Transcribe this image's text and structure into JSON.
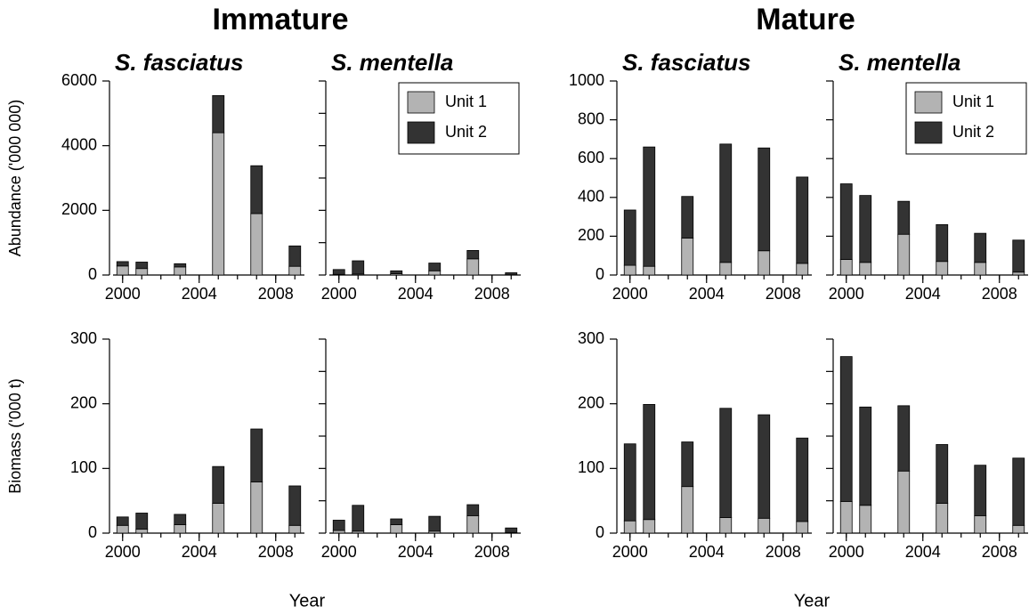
{
  "headings": [
    {
      "title": "Immature",
      "xlabel": "Year"
    },
    {
      "title": "Mature",
      "xlabel": "Year"
    }
  ],
  "chart_data": [
    {
      "type": "bar",
      "stacked": true,
      "title": "S. fasciatus",
      "ylabel": "Abundance ('000 000)",
      "x": [
        2000,
        2001,
        2003,
        2005,
        2007,
        2009
      ],
      "series": [
        {
          "name": "Unit 1",
          "color": "#b3b3b3",
          "values": [
            280,
            200,
            250,
            4400,
            1900,
            270
          ]
        },
        {
          "name": "Unit 2",
          "color": "#333333",
          "values": [
            135,
            200,
            100,
            1150,
            1480,
            630
          ]
        }
      ],
      "xlim": [
        1999.5,
        2009.5
      ],
      "xticks": [
        2000,
        2004,
        2008
      ],
      "xminor": [
        2000,
        2001,
        2002,
        2003,
        2004,
        2005,
        2006,
        2007,
        2008,
        2009
      ],
      "ylim": [
        0,
        6000
      ],
      "yticks": [
        0,
        2000,
        4000,
        6000
      ],
      "ytick_labels": true
    },
    {
      "type": "bar",
      "stacked": true,
      "title": "S. mentella",
      "legend": "upper right",
      "x": [
        2000,
        2001,
        2003,
        2005,
        2007,
        2009
      ],
      "series": [
        {
          "name": "Unit 1",
          "color": "#b3b3b3",
          "values": [
            20,
            30,
            40,
            130,
            500,
            10
          ]
        },
        {
          "name": "Unit 2",
          "color": "#333333",
          "values": [
            150,
            410,
            90,
            240,
            260,
            60
          ]
        }
      ],
      "xlim": [
        1999.5,
        2009.5
      ],
      "xticks": [
        2000,
        2004,
        2008
      ],
      "xminor": [
        2000,
        2001,
        2002,
        2003,
        2004,
        2005,
        2006,
        2007,
        2008,
        2009
      ],
      "ylim": [
        0,
        6000
      ],
      "yticks": [
        0,
        1000,
        2000,
        3000,
        4000,
        5000,
        6000
      ],
      "ytick_labels": false
    },
    {
      "type": "bar",
      "stacked": true,
      "title": "S. fasciatus",
      "x": [
        2000,
        2001,
        2003,
        2005,
        2007,
        2009
      ],
      "series": [
        {
          "name": "Unit 1",
          "color": "#b3b3b3",
          "values": [
            50,
            45,
            190,
            65,
            125,
            60
          ]
        },
        {
          "name": "Unit 2",
          "color": "#333333",
          "values": [
            285,
            615,
            215,
            610,
            530,
            445
          ]
        }
      ],
      "xlim": [
        1999.5,
        2009.5
      ],
      "xticks": [
        2000,
        2004,
        2008
      ],
      "xminor": [
        2000,
        2001,
        2002,
        2003,
        2004,
        2005,
        2006,
        2007,
        2008,
        2009
      ],
      "ylim": [
        0,
        1000
      ],
      "yticks": [
        0,
        200,
        400,
        600,
        800,
        1000
      ],
      "ytick_labels": true
    },
    {
      "type": "bar",
      "stacked": true,
      "title": "S. mentella",
      "legend": "upper right",
      "x": [
        2000,
        2001,
        2003,
        2005,
        2007,
        2009
      ],
      "series": [
        {
          "name": "Unit 1",
          "color": "#b3b3b3",
          "values": [
            80,
            65,
            210,
            70,
            65,
            15
          ]
        },
        {
          "name": "Unit 2",
          "color": "#333333",
          "values": [
            390,
            345,
            170,
            190,
            150,
            165
          ]
        }
      ],
      "xlim": [
        1999.5,
        2009.5
      ],
      "xticks": [
        2000,
        2004,
        2008
      ],
      "xminor": [
        2000,
        2001,
        2002,
        2003,
        2004,
        2005,
        2006,
        2007,
        2008,
        2009
      ],
      "ylim": [
        0,
        1000
      ],
      "yticks": [
        0,
        200,
        400,
        600,
        800,
        1000
      ],
      "ytick_labels": false
    },
    {
      "type": "bar",
      "stacked": true,
      "ylabel": "Biomass ('000 t)",
      "x": [
        2000,
        2001,
        2003,
        2005,
        2007,
        2009
      ],
      "series": [
        {
          "name": "Unit 1",
          "color": "#b3b3b3",
          "values": [
            12,
            6,
            13,
            46,
            79,
            12
          ]
        },
        {
          "name": "Unit 2",
          "color": "#333333",
          "values": [
            13,
            25,
            16,
            57,
            82,
            61
          ]
        }
      ],
      "xlim": [
        1999.5,
        2009.5
      ],
      "xticks": [
        2000,
        2004,
        2008
      ],
      "xminor": [
        2000,
        2001,
        2002,
        2003,
        2004,
        2005,
        2006,
        2007,
        2008,
        2009
      ],
      "ylim": [
        0,
        300
      ],
      "yticks": [
        0,
        100,
        200,
        300
      ],
      "ytick_labels": true
    },
    {
      "type": "bar",
      "stacked": true,
      "x": [
        2000,
        2001,
        2003,
        2005,
        2007,
        2009
      ],
      "series": [
        {
          "name": "Unit 1",
          "color": "#b3b3b3",
          "values": [
            4,
            3,
            13,
            3,
            27,
            1
          ]
        },
        {
          "name": "Unit 2",
          "color": "#333333",
          "values": [
            16,
            40,
            9,
            23,
            17,
            7
          ]
        }
      ],
      "xlim": [
        1999.5,
        2009.5
      ],
      "xticks": [
        2000,
        2004,
        2008
      ],
      "xminor": [
        2000,
        2001,
        2002,
        2003,
        2004,
        2005,
        2006,
        2007,
        2008,
        2009
      ],
      "ylim": [
        0,
        300
      ],
      "yticks": [
        0,
        50,
        100,
        150,
        200,
        250,
        300
      ],
      "ytick_labels": false
    },
    {
      "type": "bar",
      "stacked": true,
      "x": [
        2000,
        2001,
        2003,
        2005,
        2007,
        2009
      ],
      "series": [
        {
          "name": "Unit 1",
          "color": "#b3b3b3",
          "values": [
            19,
            21,
            72,
            24,
            23,
            18
          ]
        },
        {
          "name": "Unit 2",
          "color": "#333333",
          "values": [
            119,
            178,
            69,
            169,
            160,
            129
          ]
        }
      ],
      "xlim": [
        1999.5,
        2009.5
      ],
      "xticks": [
        2000,
        2004,
        2008
      ],
      "xminor": [
        2000,
        2001,
        2002,
        2003,
        2004,
        2005,
        2006,
        2007,
        2008,
        2009
      ],
      "ylim": [
        0,
        300
      ],
      "yticks": [
        0,
        100,
        200,
        300
      ],
      "ytick_labels": true
    },
    {
      "type": "bar",
      "stacked": true,
      "x": [
        2000,
        2001,
        2003,
        2005,
        2007,
        2009
      ],
      "series": [
        {
          "name": "Unit 1",
          "color": "#b3b3b3",
          "values": [
            49,
            43,
            96,
            46,
            27,
            12
          ]
        },
        {
          "name": "Unit 2",
          "color": "#333333",
          "values": [
            224,
            152,
            101,
            91,
            78,
            104
          ]
        }
      ],
      "xlim": [
        1999.5,
        2009.5
      ],
      "xticks": [
        2000,
        2004,
        2008
      ],
      "xminor": [
        2000,
        2001,
        2002,
        2003,
        2004,
        2005,
        2006,
        2007,
        2008,
        2009
      ],
      "ylim": [
        0,
        300
      ],
      "yticks": [
        0,
        50,
        100,
        150,
        200,
        250,
        300
      ],
      "ytick_labels": false
    }
  ]
}
